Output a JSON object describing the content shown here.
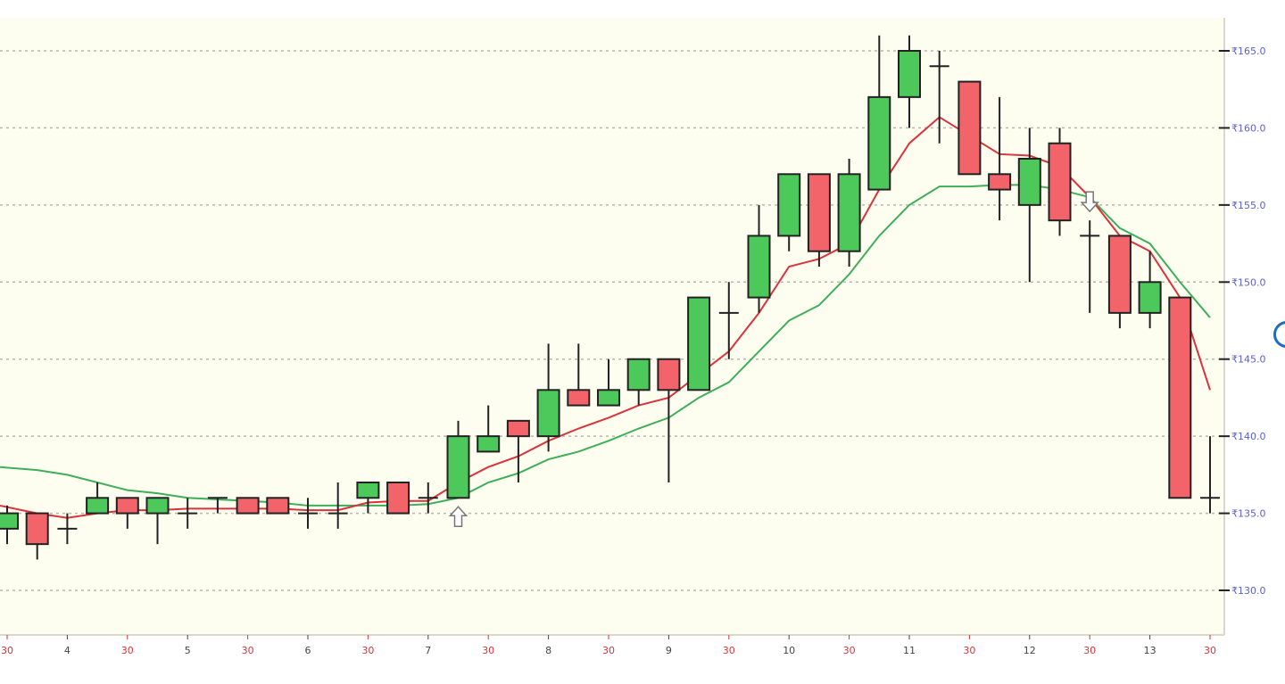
{
  "chart_data": {
    "type": "candlestick",
    "title": "",
    "xlabel": "",
    "ylabel": "",
    "ylim": [
      128.5,
      166.5
    ],
    "grid": true,
    "y_ticks": [
      "₹130.0",
      "₹135.0",
      "₹140.0",
      "₹145.0",
      "₹150.0",
      "₹155.0",
      "₹160.0",
      "₹165.0"
    ],
    "y_tick_values": [
      130,
      135,
      140,
      145,
      150,
      155,
      160,
      165
    ],
    "x_tick_labels": [
      "30",
      "4",
      "30",
      "5",
      "30",
      "6",
      "30",
      "7",
      "30",
      "8",
      "30",
      "9",
      "30",
      "10",
      "30",
      "11",
      "30",
      "12",
      "30",
      "13",
      "30"
    ],
    "colors": {
      "up": "#4cc95a",
      "down": "#f2646a",
      "fast_ma": "#d9333b",
      "slow_ma": "#3fae5a",
      "background": "#fdfdf0",
      "axis_label": "#5a5fc8",
      "half_label": "#d9333b"
    },
    "candles": [
      {
        "o": 134,
        "h": 135.5,
        "l": 133,
        "c": 135
      },
      {
        "o": 135,
        "h": 135,
        "l": 132,
        "c": 133
      },
      {
        "o": 134,
        "h": 135,
        "l": 133,
        "c": 134
      },
      {
        "o": 135,
        "h": 137,
        "l": 135,
        "c": 136
      },
      {
        "o": 136,
        "h": 136,
        "l": 134,
        "c": 135
      },
      {
        "o": 135,
        "h": 136,
        "l": 133,
        "c": 136
      },
      {
        "o": 135,
        "h": 136,
        "l": 134,
        "c": 135
      },
      {
        "o": 136,
        "h": 136,
        "l": 135,
        "c": 136
      },
      {
        "o": 136,
        "h": 136,
        "l": 135,
        "c": 135
      },
      {
        "o": 136,
        "h": 136,
        "l": 135,
        "c": 135
      },
      {
        "o": 135,
        "h": 136,
        "l": 134,
        "c": 135
      },
      {
        "o": 135,
        "h": 137,
        "l": 134,
        "c": 135
      },
      {
        "o": 136,
        "h": 137,
        "l": 135,
        "c": 137
      },
      {
        "o": 137,
        "h": 137,
        "l": 135,
        "c": 135
      },
      {
        "o": 136,
        "h": 137,
        "l": 135,
        "c": 136
      },
      {
        "o": 136,
        "h": 141,
        "l": 136,
        "c": 140
      },
      {
        "o": 139,
        "h": 142,
        "l": 139,
        "c": 140
      },
      {
        "o": 141,
        "h": 141,
        "l": 137,
        "c": 140
      },
      {
        "o": 140,
        "h": 146,
        "l": 139,
        "c": 143
      },
      {
        "o": 143,
        "h": 146,
        "l": 142,
        "c": 142
      },
      {
        "o": 142,
        "h": 145,
        "l": 142,
        "c": 143
      },
      {
        "o": 143,
        "h": 145,
        "l": 142,
        "c": 145
      },
      {
        "o": 145,
        "h": 145,
        "l": 137,
        "c": 143
      },
      {
        "o": 143,
        "h": 149,
        "l": 143,
        "c": 149
      },
      {
        "o": 148,
        "h": 150,
        "l": 145,
        "c": 148
      },
      {
        "o": 149,
        "h": 155,
        "l": 148,
        "c": 153
      },
      {
        "o": 153,
        "h": 157,
        "l": 152,
        "c": 157
      },
      {
        "o": 157,
        "h": 157,
        "l": 151,
        "c": 152
      },
      {
        "o": 152,
        "h": 158,
        "l": 151,
        "c": 157
      },
      {
        "o": 156,
        "h": 166,
        "l": 156,
        "c": 162
      },
      {
        "o": 162,
        "h": 166,
        "l": 160,
        "c": 165
      },
      {
        "o": 164,
        "h": 165,
        "l": 159,
        "c": 164
      },
      {
        "o": 163,
        "h": 163,
        "l": 157,
        "c": 157
      },
      {
        "o": 157,
        "h": 162,
        "l": 154,
        "c": 156
      },
      {
        "o": 155,
        "h": 160,
        "l": 150,
        "c": 158
      },
      {
        "o": 159,
        "h": 160,
        "l": 153,
        "c": 154
      },
      {
        "o": 153,
        "h": 154,
        "l": 148,
        "c": 153
      },
      {
        "o": 153,
        "h": 153,
        "l": 147,
        "c": 148
      },
      {
        "o": 148,
        "h": 152,
        "l": 147,
        "c": 150
      },
      {
        "o": 149,
        "h": 149,
        "l": 136,
        "c": 136
      },
      {
        "o": 136,
        "h": 140,
        "l": 135,
        "c": 136
      }
    ],
    "fast_ma": [
      135.5,
      135.0,
      134.7,
      135.0,
      135.2,
      135.2,
      135.3,
      135.3,
      135.3,
      135.3,
      135.2,
      135.2,
      135.7,
      135.8,
      135.8,
      137.0,
      138.0,
      138.7,
      139.7,
      140.5,
      141.2,
      142.0,
      142.5,
      144.0,
      145.5,
      148.0,
      151.0,
      151.5,
      152.5,
      156.0,
      159.0,
      160.7,
      159.5,
      158.3,
      158.2,
      157.5,
      155.5,
      153.0,
      152.0,
      149.0,
      143.0
    ],
    "slow_ma": [
      138.0,
      137.8,
      137.5,
      137.0,
      136.5,
      136.3,
      136.0,
      135.9,
      135.8,
      135.7,
      135.5,
      135.5,
      135.5,
      135.5,
      135.6,
      136.0,
      137.0,
      137.6,
      138.5,
      139.0,
      139.7,
      140.5,
      141.2,
      142.5,
      143.5,
      145.5,
      147.5,
      148.5,
      150.5,
      153.0,
      155.0,
      156.2,
      156.2,
      156.3,
      156.3,
      156.0,
      155.5,
      153.5,
      152.5,
      150.0,
      147.7
    ],
    "signals": [
      {
        "candle_index": 15,
        "type": "buy",
        "icon": "arrow-up-icon"
      },
      {
        "candle_index": 36,
        "type": "sell",
        "icon": "arrow-down-icon"
      }
    ]
  }
}
